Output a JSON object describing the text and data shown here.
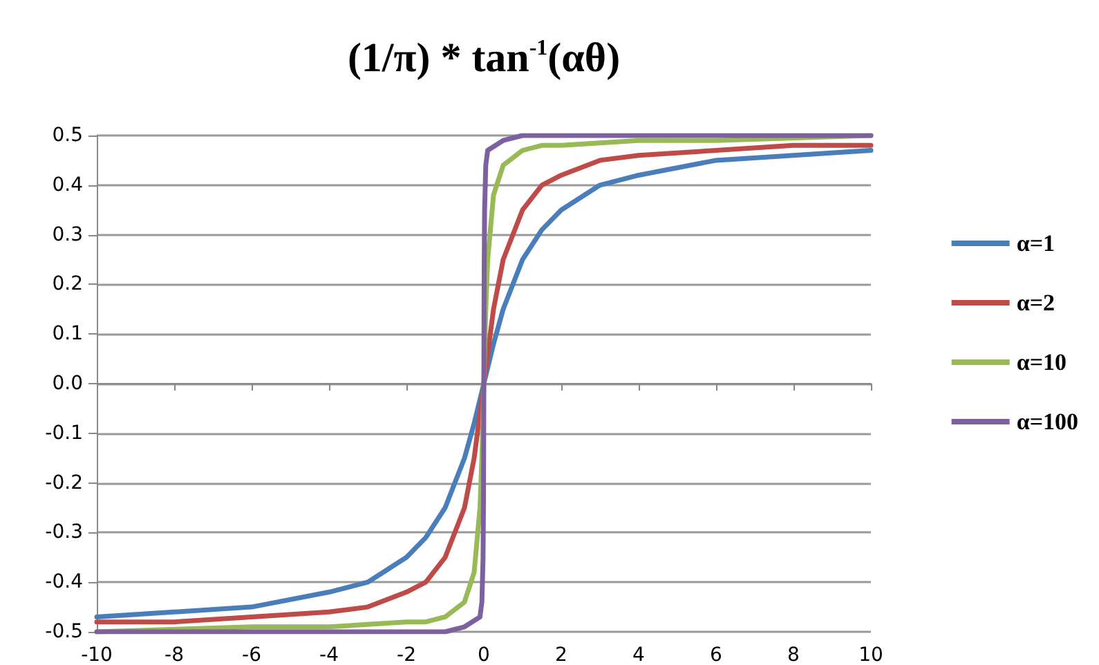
{
  "chart_data": {
    "type": "line",
    "title": "(1/π) * tan$^{-1}$(αθ)",
    "xlim": [
      -10,
      10
    ],
    "xticks": [
      -10,
      -8,
      -6,
      -4,
      -2,
      0,
      2,
      4,
      6,
      8,
      10
    ],
    "ylim": [
      -0.5,
      0.5
    ],
    "yticks": [
      -0.5,
      -0.4,
      -0.3,
      -0.2,
      -0.1,
      {
        "value": 0,
        "label": "0.0"
      },
      0.1,
      0.2,
      0.3,
      0.4,
      0.5
    ],
    "grid": "y",
    "legend": "right",
    "marker": "none",
    "line_style": "solid",
    "series": [
      {
        "name": "α=1",
        "color": "#4a7ebb",
        "x": [
          -10,
          -8,
          -6,
          -4,
          -3,
          -2,
          -1.5,
          -1,
          -0.5,
          -0.25,
          0,
          0.25,
          0.5,
          1,
          1.5,
          2,
          3,
          4,
          6,
          8,
          10
        ],
        "values": [
          -0.47,
          -0.46,
          -0.45,
          -0.42,
          -0.4,
          -0.35,
          -0.31,
          -0.25,
          -0.15,
          -0.08,
          0,
          0.08,
          0.15,
          0.25,
          0.31,
          0.35,
          0.4,
          0.42,
          0.45,
          0.46,
          0.47
        ]
      },
      {
        "name": "α=2",
        "color": "#be4b48",
        "x": [
          -10,
          -8,
          -6,
          -4,
          -3,
          -2,
          -1.5,
          -1,
          -0.5,
          -0.25,
          -0.1,
          0,
          0.1,
          0.25,
          0.5,
          1,
          1.5,
          2,
          3,
          4,
          6,
          8,
          10
        ],
        "values": [
          -0.48,
          -0.48,
          -0.47,
          -0.46,
          -0.45,
          -0.42,
          -0.4,
          -0.35,
          -0.25,
          -0.15,
          -0.06,
          0,
          0.06,
          0.15,
          0.25,
          0.35,
          0.4,
          0.42,
          0.45,
          0.46,
          0.47,
          0.48,
          0.48
        ]
      },
      {
        "name": "α=10",
        "color": "#98b954",
        "x": [
          -10,
          -6,
          -4,
          -2,
          -1.5,
          -1,
          -0.5,
          -0.25,
          -0.1,
          -0.05,
          0,
          0.05,
          0.1,
          0.25,
          0.5,
          1,
          1.5,
          2,
          4,
          6,
          10
        ],
        "values": [
          -0.5,
          -0.49,
          -0.49,
          -0.48,
          -0.48,
          -0.47,
          -0.44,
          -0.38,
          -0.25,
          -0.15,
          0,
          0.15,
          0.25,
          0.38,
          0.44,
          0.47,
          0.48,
          0.48,
          0.49,
          0.49,
          0.5
        ]
      },
      {
        "name": "α=100",
        "color": "#7d60a0",
        "x": [
          -10,
          -1,
          -0.5,
          -0.1,
          -0.05,
          -0.02,
          -0.01,
          -0.005,
          0,
          0.005,
          0.01,
          0.02,
          0.05,
          0.1,
          0.5,
          1,
          10
        ],
        "values": [
          -0.5,
          -0.5,
          -0.49,
          -0.47,
          -0.44,
          -0.35,
          -0.25,
          -0.15,
          0,
          0.15,
          0.25,
          0.35,
          0.44,
          0.47,
          0.49,
          0.5,
          0.5
        ]
      }
    ]
  }
}
